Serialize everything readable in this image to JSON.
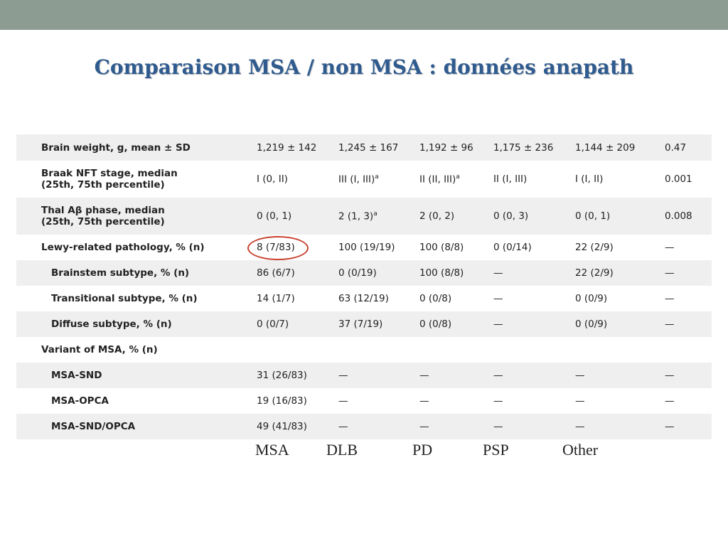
{
  "slide": {
    "title": "Comparaison MSA / non MSA : données anapath"
  },
  "table": {
    "rows": [
      {
        "label": [
          "Brain weight, g, mean ± SD"
        ],
        "cells": [
          "1,219 ± 142",
          "1,245 ± 167",
          "1,192 ± 96",
          "1,175 ± 236",
          "1,144 ± 209",
          "0.47"
        ]
      },
      {
        "label": [
          "Braak NFT stage, median",
          "(25th, 75th percentile)"
        ],
        "cells": [
          "I (0, II)",
          "III (I, III)",
          "II (II, III)",
          "II (I, III)",
          "I (I, II)",
          "0.001"
        ]
      },
      {
        "label": [
          "Thal Aβ phase, median",
          "(25th, 75th percentile)"
        ],
        "cells": [
          "0 (0, 1)",
          "2 (1, 3)",
          "2 (0, 2)",
          "0 (0, 3)",
          "0 (0, 1)",
          "0.008"
        ]
      },
      {
        "label": [
          "Lewy-related pathology, % (n)"
        ],
        "cells": [
          "8 (7/83)",
          "100 (19/19)",
          "100 (8/8)",
          "0 (0/14)",
          "22 (2/9)",
          "—"
        ]
      },
      {
        "label": [
          "Brainstem subtype, % (n)"
        ],
        "cells": [
          "86 (6/7)",
          "0 (0/19)",
          "100 (8/8)",
          "—",
          "22 (2/9)",
          "—"
        ]
      },
      {
        "label": [
          "Transitional subtype, % (n)"
        ],
        "cells": [
          "14 (1/7)",
          "63 (12/19)",
          "0 (0/8)",
          "—",
          "0 (0/9)",
          "—"
        ]
      },
      {
        "label": [
          "Diffuse subtype, % (n)"
        ],
        "cells": [
          "0 (0/7)",
          "37 (7/19)",
          "0 (0/8)",
          "—",
          "0 (0/9)",
          "—"
        ]
      },
      {
        "label": [
          "Variant of MSA, % (n)"
        ],
        "cells": [
          "",
          "",
          "",
          "",
          "",
          ""
        ]
      },
      {
        "label": [
          "MSA-SND"
        ],
        "cells": [
          "31 (26/83)",
          "—",
          "—",
          "—",
          "—",
          "—"
        ]
      },
      {
        "label": [
          "MSA-OPCA"
        ],
        "cells": [
          "19 (16/83)",
          "—",
          "—",
          "—",
          "—",
          "—"
        ]
      },
      {
        "label": [
          "MSA-SND/OPCA"
        ],
        "cells": [
          "49 (41/83)",
          "—",
          "—",
          "—",
          "—",
          "—"
        ]
      }
    ],
    "superscript": "a"
  },
  "column_labels": [
    "MSA",
    "DLB",
    "PD",
    "PSP",
    "Other"
  ]
}
